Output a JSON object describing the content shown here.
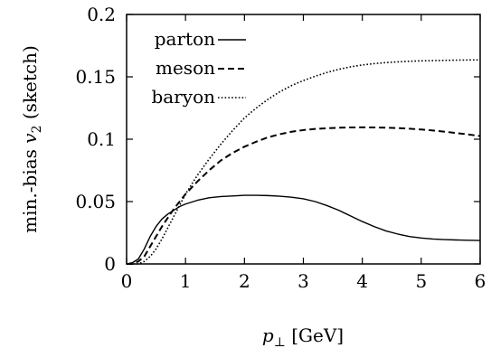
{
  "chart_data": {
    "type": "line",
    "xlabel_symbol": "p",
    "xlabel_subscript": "⊥",
    "xlabel_unit": " [GeV]",
    "ylabel_prefix": "min.-bias ",
    "ylabel_symbol": "v",
    "ylabel_subscript": "2",
    "ylabel_suffix": " (sketch)",
    "xlim": [
      0,
      6
    ],
    "ylim": [
      0,
      0.2
    ],
    "xticks": [
      0,
      1,
      2,
      3,
      4,
      5,
      6
    ],
    "xtick_labels": [
      "0",
      "1",
      "2",
      "3",
      "4",
      "5",
      "6"
    ],
    "yticks": [
      0,
      0.05,
      0.1,
      0.15,
      0.2
    ],
    "ytick_labels": [
      "0",
      "0.05",
      "0.1",
      "0.15",
      "0.2"
    ],
    "grid": false,
    "legend_position": "top-left",
    "series": [
      {
        "name": "parton",
        "dash": "solid",
        "color": "#000000",
        "x": [
          0,
          0.1,
          0.2,
          0.3,
          0.4,
          0.5,
          0.6,
          0.7,
          0.8,
          0.9,
          1.0,
          1.2,
          1.4,
          1.6,
          1.8,
          2.0,
          2.2,
          2.4,
          2.6,
          2.8,
          3.0,
          3.2,
          3.4,
          3.6,
          3.8,
          4.0,
          4.2,
          4.4,
          4.6,
          4.8,
          5.0,
          5.2,
          5.4,
          5.6,
          5.8,
          6.0
        ],
        "y": [
          0,
          0.001,
          0.004,
          0.012,
          0.022,
          0.03,
          0.036,
          0.04,
          0.043,
          0.046,
          0.048,
          0.051,
          0.053,
          0.054,
          0.0545,
          0.055,
          0.055,
          0.0548,
          0.0543,
          0.0535,
          0.0522,
          0.05,
          0.0468,
          0.043,
          0.0385,
          0.034,
          0.03,
          0.0265,
          0.024,
          0.022,
          0.0208,
          0.02,
          0.0195,
          0.0192,
          0.019,
          0.0188
        ]
      },
      {
        "name": "meson",
        "dash": "dashed",
        "color": "#000000",
        "x": [
          0,
          0.1,
          0.2,
          0.3,
          0.4,
          0.5,
          0.6,
          0.7,
          0.8,
          0.9,
          1.0,
          1.2,
          1.4,
          1.6,
          1.8,
          2.0,
          2.2,
          2.4,
          2.6,
          2.8,
          3.0,
          3.2,
          3.4,
          3.6,
          3.8,
          4.0,
          4.2,
          4.4,
          4.6,
          4.8,
          5.0,
          5.2,
          5.4,
          5.6,
          5.8,
          6.0
        ],
        "y": [
          0,
          0,
          0.002,
          0.006,
          0.014,
          0.022,
          0.03,
          0.037,
          0.044,
          0.05,
          0.056,
          0.066,
          0.075,
          0.083,
          0.089,
          0.094,
          0.098,
          0.1015,
          0.104,
          0.106,
          0.1073,
          0.1082,
          0.1088,
          0.1092,
          0.1094,
          0.1095,
          0.1094,
          0.1092,
          0.1089,
          0.1084,
          0.1078,
          0.107,
          0.106,
          0.1049,
          0.1038,
          0.1025
        ]
      },
      {
        "name": "baryon",
        "dash": "dotted",
        "color": "#000000",
        "x": [
          0,
          0.1,
          0.2,
          0.3,
          0.4,
          0.5,
          0.6,
          0.7,
          0.8,
          0.9,
          1.0,
          1.2,
          1.4,
          1.6,
          1.8,
          2.0,
          2.2,
          2.4,
          2.6,
          2.8,
          3.0,
          3.2,
          3.4,
          3.6,
          3.8,
          4.0,
          4.2,
          4.4,
          4.6,
          4.8,
          5.0,
          5.2,
          5.4,
          5.6,
          5.8,
          6.0
        ],
        "y": [
          0,
          0,
          0,
          0.002,
          0.006,
          0.012,
          0.02,
          0.029,
          0.038,
          0.047,
          0.056,
          0.071,
          0.084,
          0.096,
          0.107,
          0.117,
          0.125,
          0.132,
          0.138,
          0.143,
          0.147,
          0.1505,
          0.1535,
          0.156,
          0.158,
          0.1595,
          0.1606,
          0.1614,
          0.162,
          0.1625,
          0.1628,
          0.163,
          0.1632,
          0.1634,
          0.1635,
          0.1636
        ]
      }
    ]
  }
}
